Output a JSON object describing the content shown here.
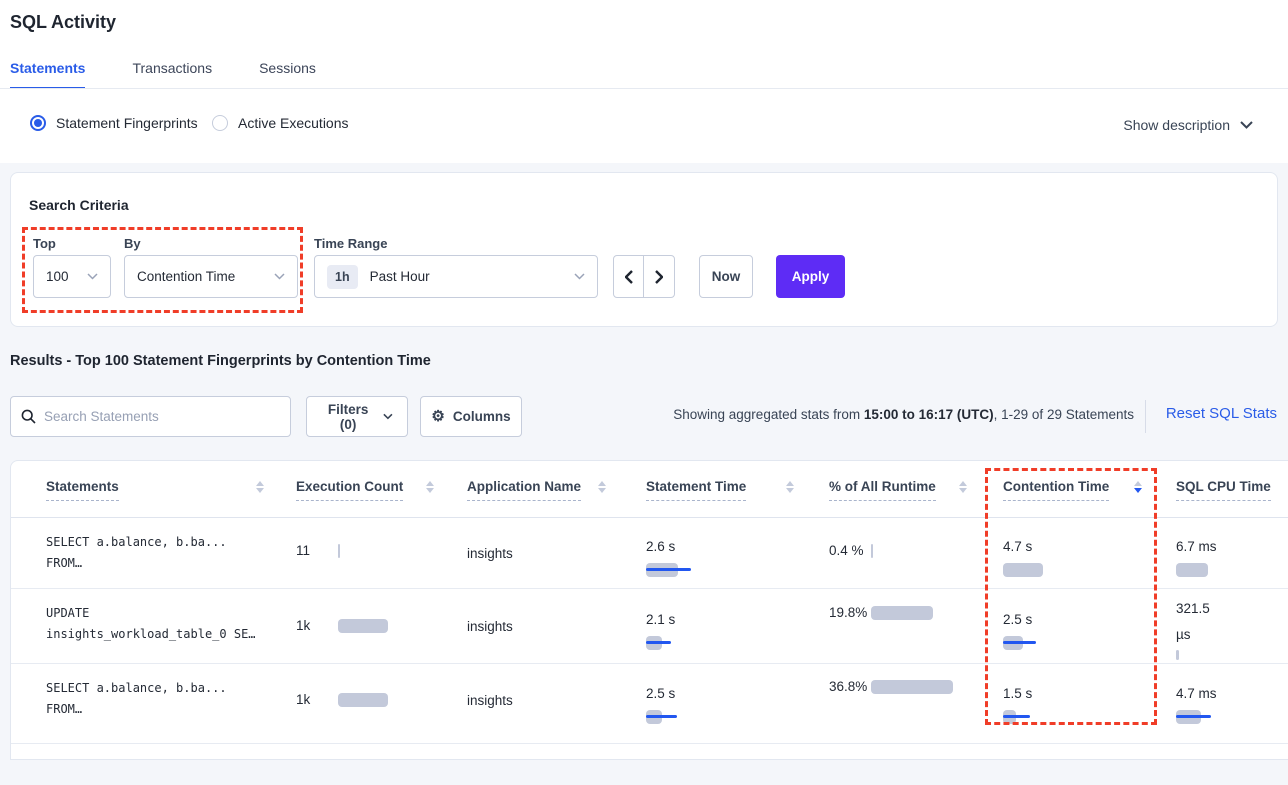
{
  "title": "SQL Activity",
  "tabs": {
    "statements": "Statements",
    "transactions": "Transactions",
    "sessions": "Sessions"
  },
  "view_options": {
    "fingerprints": "Statement Fingerprints",
    "active_executions": "Active Executions",
    "show_description": "Show description"
  },
  "criteria": {
    "heading": "Search Criteria",
    "top_label": "Top",
    "top_value": "100",
    "by_label": "By",
    "by_value": "Contention Time",
    "time_label": "Time Range",
    "time_badge": "1h",
    "time_value": "Past Hour",
    "now": "Now",
    "apply": "Apply"
  },
  "results": {
    "heading": "Results - Top 100 Statement Fingerprints by Contention Time",
    "search_placeholder": "Search Statements",
    "filters": "Filters (0)",
    "columns": "Columns",
    "stats_prefix": "Showing aggregated stats from ",
    "stats_range": "15:00 to 16:17 (UTC)",
    "stats_suffix": ", 1-29 of 29 Statements",
    "reset": "Reset SQL Stats"
  },
  "table": {
    "headers": [
      "Statements",
      "Execution Count",
      "Application Name",
      "Statement Time",
      "% of All Runtime",
      "Contention Time",
      "SQL CPU Time"
    ],
    "sorted_column": "Contention Time",
    "sort_direction": "desc",
    "rows": [
      {
        "statement_line1": "SELECT a.balance, b.ba...",
        "statement_line2": "FROM…",
        "exec": {
          "v": "11",
          "gray": 2,
          "blue": 0
        },
        "app": "insights",
        "stmt_time": {
          "v": "2.6 s",
          "gray": 32,
          "blue": 45
        },
        "pct": {
          "l1": "0.4 %",
          "l2": "",
          "gray": 2,
          "blue": 0
        },
        "contention": {
          "v": "4.7 s",
          "gray": 40,
          "blue": 0
        },
        "cpu": {
          "l1": "6.7 ms",
          "l2": "",
          "gray": 32,
          "blue": 0
        }
      },
      {
        "statement_line1": "UPDATE",
        "statement_line2": "insights_workload_table_0 SE…",
        "exec": {
          "v": "1k",
          "gray": 50,
          "blue": 0
        },
        "app": "insights",
        "stmt_time": {
          "v": "2.1 s",
          "gray": 16,
          "blue": 25
        },
        "pct": {
          "l1": "19.8",
          "l2": "%",
          "gray": 62,
          "blue": 0
        },
        "contention": {
          "v": "2.5 s",
          "gray": 20,
          "blue": 33
        },
        "cpu": {
          "l1": "321.5",
          "l2": "µs",
          "gray": 3,
          "blue": 0
        }
      },
      {
        "statement_line1": "SELECT a.balance, b.ba...",
        "statement_line2": "FROM…",
        "exec": {
          "v": "1k",
          "gray": 50,
          "blue": 0
        },
        "app": "insights",
        "stmt_time": {
          "v": "2.5 s",
          "gray": 16,
          "blue": 31
        },
        "pct": {
          "l1": "36.8",
          "l2": "%",
          "gray": 82,
          "blue": 0
        },
        "contention": {
          "v": "1.5 s",
          "gray": 13,
          "blue": 27
        },
        "cpu": {
          "l1": "4.7 ms",
          "l2": "",
          "gray": 25,
          "blue": 35
        }
      }
    ]
  },
  "colors": {
    "accent_blue": "#2a5ce8",
    "bar_blue": "#2257f0",
    "bar_gray": "#c3c9da",
    "apply_purple": "#5e2cf5",
    "annotation_red": "#f03d28"
  }
}
